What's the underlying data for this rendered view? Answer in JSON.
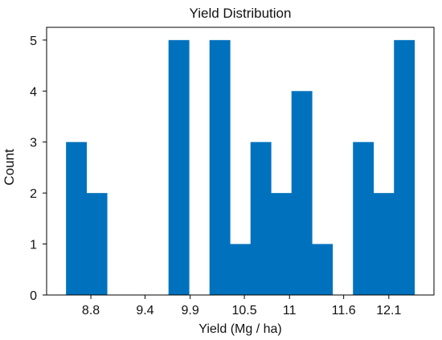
{
  "chart_data": {
    "type": "bar",
    "title": "Yield Distribution",
    "xlabel": "Yield (Mg / ha)",
    "ylabel": "Count",
    "bins": [
      {
        "x0": 8.525,
        "x1": 8.752,
        "count": 3
      },
      {
        "x0": 8.752,
        "x1": 8.979,
        "count": 2
      },
      {
        "x0": 8.979,
        "x1": 9.206,
        "count": 0
      },
      {
        "x0": 9.206,
        "x1": 9.433,
        "count": 0
      },
      {
        "x0": 9.433,
        "x1": 9.66,
        "count": 0
      },
      {
        "x0": 9.66,
        "x1": 9.887,
        "count": 5
      },
      {
        "x0": 9.887,
        "x1": 10.114,
        "count": 0
      },
      {
        "x0": 10.114,
        "x1": 10.341,
        "count": 5
      },
      {
        "x0": 10.341,
        "x1": 10.568,
        "count": 1
      },
      {
        "x0": 10.568,
        "x1": 10.795,
        "count": 3
      },
      {
        "x0": 10.795,
        "x1": 11.022,
        "count": 2
      },
      {
        "x0": 11.022,
        "x1": 11.249,
        "count": 4
      },
      {
        "x0": 11.249,
        "x1": 11.476,
        "count": 1
      },
      {
        "x0": 11.476,
        "x1": 11.703,
        "count": 0
      },
      {
        "x0": 11.703,
        "x1": 11.93,
        "count": 3
      },
      {
        "x0": 11.93,
        "x1": 12.157,
        "count": 2
      },
      {
        "x0": 12.157,
        "x1": 12.384,
        "count": 5
      }
    ],
    "xlim": [
      8.31,
      12.6
    ],
    "ylim": [
      0,
      5.25
    ],
    "xticks": [
      {
        "value": 8.8,
        "label": "8.8"
      },
      {
        "value": 9.4,
        "label": "9.4"
      },
      {
        "value": 9.9,
        "label": "9.9"
      },
      {
        "value": 10.5,
        "label": "10.5"
      },
      {
        "value": 11.0,
        "label": "11"
      },
      {
        "value": 11.6,
        "label": "11.6"
      },
      {
        "value": 12.1,
        "label": "12.1"
      }
    ],
    "yticks": [
      {
        "value": 0,
        "label": "0"
      },
      {
        "value": 1,
        "label": "1"
      },
      {
        "value": 2,
        "label": "2"
      },
      {
        "value": 3,
        "label": "3"
      },
      {
        "value": 4,
        "label": "4"
      },
      {
        "value": 5,
        "label": "5"
      }
    ],
    "grid": false,
    "bar_color": "#0072bd"
  }
}
